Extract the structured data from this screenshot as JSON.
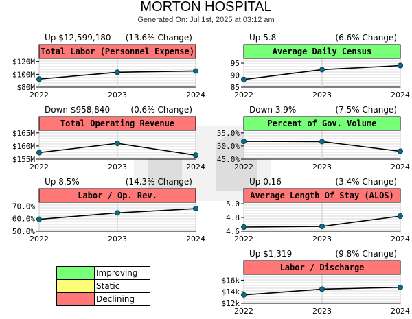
{
  "header": {
    "title": "MORTON HOSPITAL",
    "subtitle": "Generated On: Jul 1st, 2025 at 03:12 am"
  },
  "colors": {
    "improving": "#77ff77",
    "static": "#ffff77",
    "declining": "#ff7777",
    "line": "#000000",
    "point": "#0a6b8a"
  },
  "legend": {
    "items": [
      {
        "label": "Improving",
        "color": "#77ff77"
      },
      {
        "label": "Static",
        "color": "#ffff77"
      },
      {
        "label": "Declining",
        "color": "#ff7777"
      }
    ]
  },
  "chart_data": [
    {
      "type": "line",
      "title": "Total Labor (Personnel Expense)",
      "status": "declining",
      "change_left": "Up $12,599,180",
      "change_right": "(13.6% Change)",
      "categories": [
        "2022",
        "2023",
        "2024"
      ],
      "values": [
        92600000,
        103200000,
        105200000
      ],
      "ylim": [
        80000000,
        125000000
      ],
      "yticks": [
        {
          "v": 80000000,
          "label": "$80M"
        },
        {
          "v": 100000000,
          "label": "$100M"
        },
        {
          "v": 120000000,
          "label": "$120M"
        }
      ]
    },
    {
      "type": "line",
      "title": "Average Daily Census",
      "status": "improving",
      "change_left": "Up 5.8",
      "change_right": "(6.6% Change)",
      "categories": [
        "2022",
        "2023",
        "2024"
      ],
      "values": [
        88.2,
        92.3,
        94.0
      ],
      "ylim": [
        85,
        97
      ],
      "yticks": [
        {
          "v": 85,
          "label": "85"
        },
        {
          "v": 90,
          "label": "90"
        },
        {
          "v": 95,
          "label": "95"
        }
      ]
    },
    {
      "type": "line",
      "title": "Total Operating Revenue",
      "status": "declining",
      "change_left": "Down $958,840",
      "change_right": "(0.6% Change)",
      "categories": [
        "2022",
        "2023",
        "2024"
      ],
      "values": [
        157500000,
        161000000,
        156500000
      ],
      "ylim": [
        155000000,
        166000000
      ],
      "yticks": [
        {
          "v": 155000000,
          "label": "$155M"
        },
        {
          "v": 160000000,
          "label": "$160M"
        },
        {
          "v": 165000000,
          "label": "$165M"
        }
      ]
    },
    {
      "type": "line",
      "title": "Percent of Gov. Volume",
      "status": "improving",
      "change_left": "Down 3.9%",
      "change_right": "(7.5% Change)",
      "categories": [
        "2022",
        "2023",
        "2024"
      ],
      "values": [
        51.8,
        51.7,
        48.0
      ],
      "ylim": [
        45,
        56
      ],
      "yticks": [
        {
          "v": 45,
          "label": "45.0%"
        },
        {
          "v": 50,
          "label": "50.0%"
        },
        {
          "v": 55,
          "label": "55.0%"
        }
      ]
    },
    {
      "type": "line",
      "title": "Labor / Op. Rev.",
      "status": "declining",
      "change_left": "Up 8.5%",
      "change_right": "(14.3% Change)",
      "categories": [
        "2022",
        "2023",
        "2024"
      ],
      "values": [
        59.5,
        64.6,
        68.0
      ],
      "ylim": [
        50,
        73
      ],
      "yticks": [
        {
          "v": 50,
          "label": "50.0%"
        },
        {
          "v": 60,
          "label": "60.0%"
        },
        {
          "v": 70,
          "label": "70.0%"
        }
      ]
    },
    {
      "type": "line",
      "title": "Average Length Of Stay (ALOS)",
      "status": "declining",
      "change_left": "Up 0.16",
      "change_right": "(3.4% Change)",
      "categories": [
        "2022",
        "2023",
        "2024"
      ],
      "values": [
        4.66,
        4.67,
        4.82
      ],
      "ylim": [
        4.6,
        5.02
      ],
      "yticks": [
        {
          "v": 4.6,
          "label": "4.6"
        },
        {
          "v": 4.8,
          "label": "4.8"
        },
        {
          "v": 5.0,
          "label": "5.0"
        }
      ]
    },
    {
      "type": "line",
      "title": "Labor / Discharge",
      "status": "declining",
      "change_left": "Up $1,319",
      "change_right": "(9.8% Change)",
      "categories": [
        "2022",
        "2023",
        "2024"
      ],
      "values": [
        13450,
        14450,
        14770
      ],
      "ylim": [
        12000,
        17000
      ],
      "yticks": [
        {
          "v": 12000,
          "label": "$12k"
        },
        {
          "v": 14000,
          "label": "$14k"
        },
        {
          "v": 16000,
          "label": "$16k"
        }
      ]
    }
  ]
}
